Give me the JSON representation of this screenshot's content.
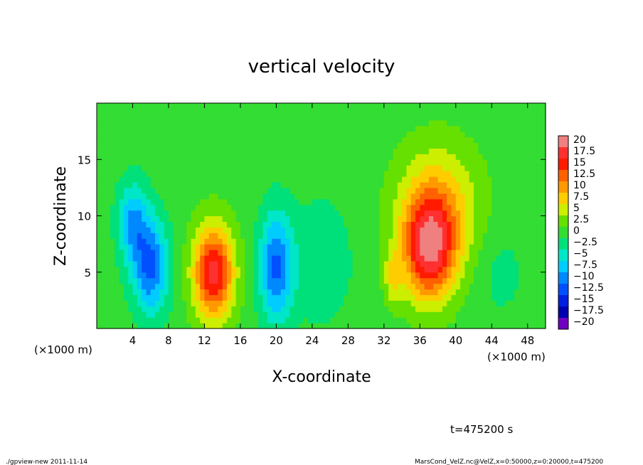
{
  "chart_data": {
    "type": "heatmap",
    "title": "vertical velocity",
    "xlabel": "X-coordinate",
    "ylabel": "Z-coordinate",
    "x_unit_left": "(×1000 m)",
    "x_unit_right": "(×1000 m)",
    "xlim": [
      0,
      50
    ],
    "ylim": [
      0,
      20
    ],
    "x_ticks": [
      {
        "value": 4,
        "label": "4"
      },
      {
        "value": 8,
        "label": "8"
      },
      {
        "value": 12,
        "label": "12"
      },
      {
        "value": 16,
        "label": "16"
      },
      {
        "value": 20,
        "label": "20"
      },
      {
        "value": 24,
        "label": "24"
      },
      {
        "value": 28,
        "label": "28"
      },
      {
        "value": 32,
        "label": "32"
      },
      {
        "value": 36,
        "label": "36"
      },
      {
        "value": 40,
        "label": "40"
      },
      {
        "value": 44,
        "label": "44"
      },
      {
        "value": 48,
        "label": "48"
      }
    ],
    "y_ticks": [
      {
        "value": 5,
        "label": "5"
      },
      {
        "value": 10,
        "label": "10"
      },
      {
        "value": 15,
        "label": "15"
      }
    ],
    "background_value": 0,
    "features": [
      {
        "x": 13,
        "z": 5,
        "sx": 1.6,
        "sz": 3.0,
        "value": 16
      },
      {
        "x": 37,
        "z": 7,
        "sx": 2.0,
        "sz": 3.2,
        "value": 15
      },
      {
        "x": 38,
        "z": 10.5,
        "sx": 3.2,
        "sz": 4.0,
        "value": 8
      },
      {
        "x": 33,
        "z": 4.5,
        "sx": 0.7,
        "sz": 1.6,
        "value": 5
      },
      {
        "x": 6,
        "z": 5.5,
        "sx": 1.4,
        "sz": 3.0,
        "value": -11
      },
      {
        "x": 4,
        "z": 9.5,
        "sx": 1.2,
        "sz": 2.5,
        "value": -8
      },
      {
        "x": 20,
        "z": 5.5,
        "sx": 1.3,
        "sz": 3.4,
        "value": -11
      },
      {
        "x": 25,
        "z": 6,
        "sx": 2.5,
        "sz": 4,
        "value": -3
      },
      {
        "x": 45,
        "z": 5,
        "sx": 2.0,
        "sz": 3,
        "value": -2
      }
    ],
    "colorbar": {
      "levels": [
        {
          "label": "20",
          "color": "#f08080"
        },
        {
          "label": "17.5",
          "color": "#ff3030"
        },
        {
          "label": "15",
          "color": "#ff1a00"
        },
        {
          "label": "12.5",
          "color": "#ff6000"
        },
        {
          "label": "10",
          "color": "#ff9900"
        },
        {
          "label": "7.5",
          "color": "#ffcc00"
        },
        {
          "label": "5",
          "color": "#ccee00"
        },
        {
          "label": "2.5",
          "color": "#66e000"
        },
        {
          "label": "0",
          "color": "#33dd33"
        },
        {
          "label": "−2.5",
          "color": "#00e07a"
        },
        {
          "label": "−5",
          "color": "#00e6c8"
        },
        {
          "label": "−7.5",
          "color": "#00ccff"
        },
        {
          "label": "−10",
          "color": "#0088ff"
        },
        {
          "label": "−12.5",
          "color": "#0050ff"
        },
        {
          "label": "−15",
          "color": "#0020e0"
        },
        {
          "label": "−17.5",
          "color": "#0000b0"
        },
        {
          "label": "−20",
          "color": "#7000c0"
        }
      ]
    }
  },
  "time_label": "t=475200 s",
  "footer_left": "./gpview-new  2011-11-14",
  "footer_right": "MarsCond_VelZ.nc@VelZ,x=0:50000,z=0:20000,t=475200"
}
